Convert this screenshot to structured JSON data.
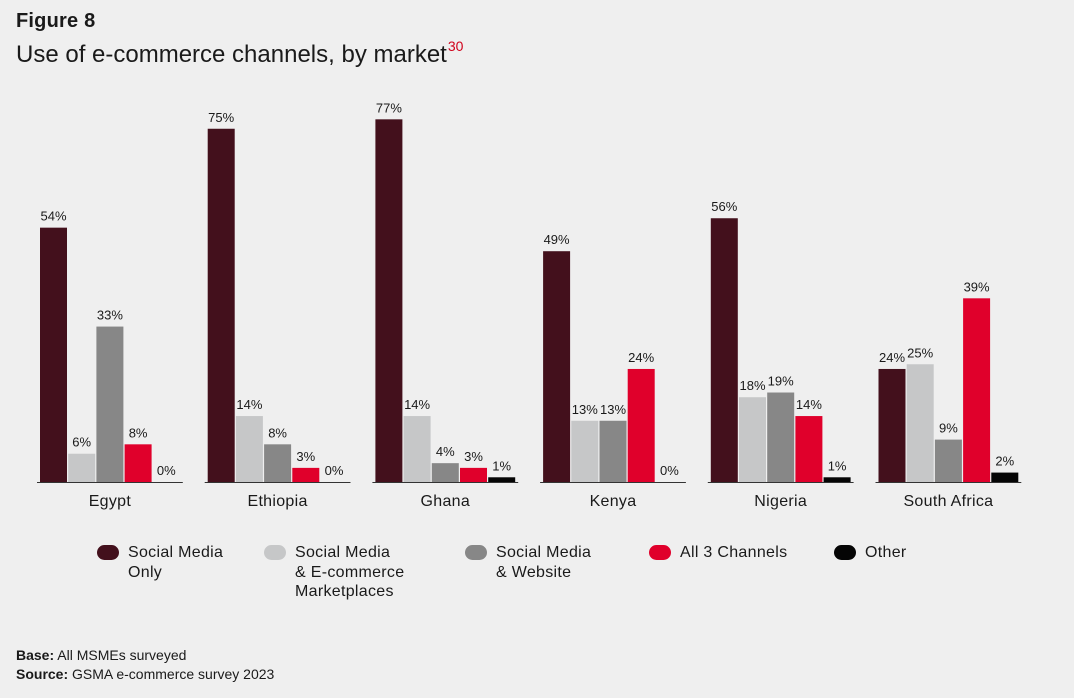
{
  "figure_label": "Figure 8",
  "title": "Use of e-commerce channels, by market",
  "title_superscript": "30",
  "colors": {
    "social_media_only": "#43101c",
    "social_media_marketplaces": "#c6c7c8",
    "social_media_website": "#878787",
    "all_3_channels": "#e0002b",
    "other": "#050505"
  },
  "chart_data": {
    "type": "bar",
    "title": "Use of e-commerce channels, by market",
    "categories": [
      "Egypt",
      "Ethiopia",
      "Ghana",
      "Kenya",
      "Nigeria",
      "South Africa"
    ],
    "ylim": [
      0,
      80
    ],
    "grid": false,
    "legend_position": "bottom",
    "series": [
      {
        "name": "Social Media Only",
        "color_key": "social_media_only",
        "values": [
          54,
          75,
          77,
          49,
          56,
          24
        ]
      },
      {
        "name": "Social Media & E-commerce Marketplaces",
        "color_key": "social_media_marketplaces",
        "values": [
          6,
          14,
          14,
          13,
          18,
          25
        ]
      },
      {
        "name": "Social Media & Website",
        "color_key": "social_media_website",
        "values": [
          33,
          8,
          4,
          13,
          19,
          9
        ]
      },
      {
        "name": "All 3 Channels",
        "color_key": "all_3_channels",
        "values": [
          8,
          3,
          3,
          24,
          14,
          39
        ]
      },
      {
        "name": "Other",
        "color_key": "other",
        "values": [
          0,
          0,
          1,
          0,
          1,
          2
        ]
      }
    ],
    "value_suffix": "%"
  },
  "legend": {
    "items": [
      {
        "label": "Social Media\nOnly",
        "color_key": "social_media_only"
      },
      {
        "label": "Social Media\n&  E-commerce\nMarketplaces",
        "color_key": "social_media_marketplaces"
      },
      {
        "label": "Social Media\n& Website",
        "color_key": "social_media_website"
      },
      {
        "label": "All 3 Channels",
        "color_key": "all_3_channels"
      },
      {
        "label": "Other",
        "color_key": "other"
      }
    ]
  },
  "footer": {
    "base_label": "Base:",
    "base_text": "All MSMEs surveyed",
    "source_label": "Source:",
    "source_text": "GSMA e-commerce survey 2023"
  }
}
